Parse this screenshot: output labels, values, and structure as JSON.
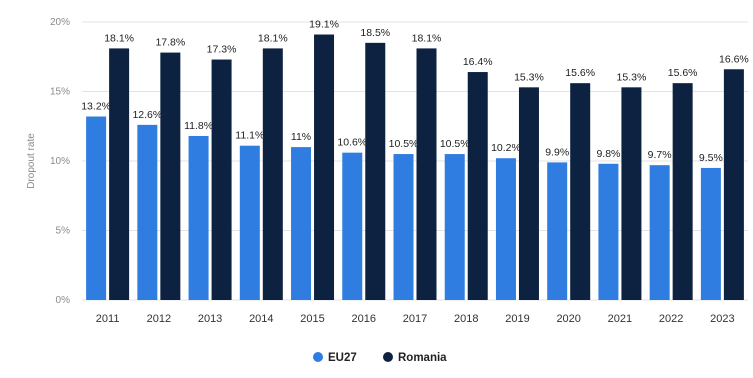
{
  "chart_data": {
    "type": "bar",
    "categories": [
      "2011",
      "2012",
      "2013",
      "2014",
      "2015",
      "2016",
      "2017",
      "2018",
      "2019",
      "2020",
      "2021",
      "2022",
      "2023"
    ],
    "series": [
      {
        "name": "EU27",
        "color": "#2f7de1",
        "values": [
          13.2,
          12.6,
          11.8,
          11.1,
          11,
          10.6,
          10.5,
          10.5,
          10.2,
          9.9,
          9.8,
          9.7,
          9.5
        ],
        "labels": [
          "13.2%",
          "12.6%",
          "11.8%",
          "11.1%",
          "11%",
          "10.6%",
          "10.5%",
          "10.5%",
          "10.2%",
          "9.9%",
          "9.8%",
          "9.7%",
          "9.5%"
        ]
      },
      {
        "name": "Romania",
        "color": "#0d2140",
        "values": [
          18.1,
          17.8,
          17.3,
          18.1,
          19.1,
          18.5,
          18.1,
          16.4,
          15.3,
          15.6,
          15.3,
          15.6,
          16.6
        ],
        "labels": [
          "18.1%",
          "17.8%",
          "17.3%",
          "18.1%",
          "19.1%",
          "18.5%",
          "18.1%",
          "16.4%",
          "15.3%",
          "15.6%",
          "15.3%",
          "15.6%",
          "16.6%"
        ]
      }
    ],
    "ylabel": "Dropout rate",
    "ylim": [
      0,
      20
    ],
    "yticks": [
      0,
      5,
      10,
      15,
      20
    ],
    "ytick_labels": [
      "0%",
      "5%",
      "10%",
      "15%",
      "20%"
    ],
    "grid": true,
    "legend_position": "bottom"
  }
}
